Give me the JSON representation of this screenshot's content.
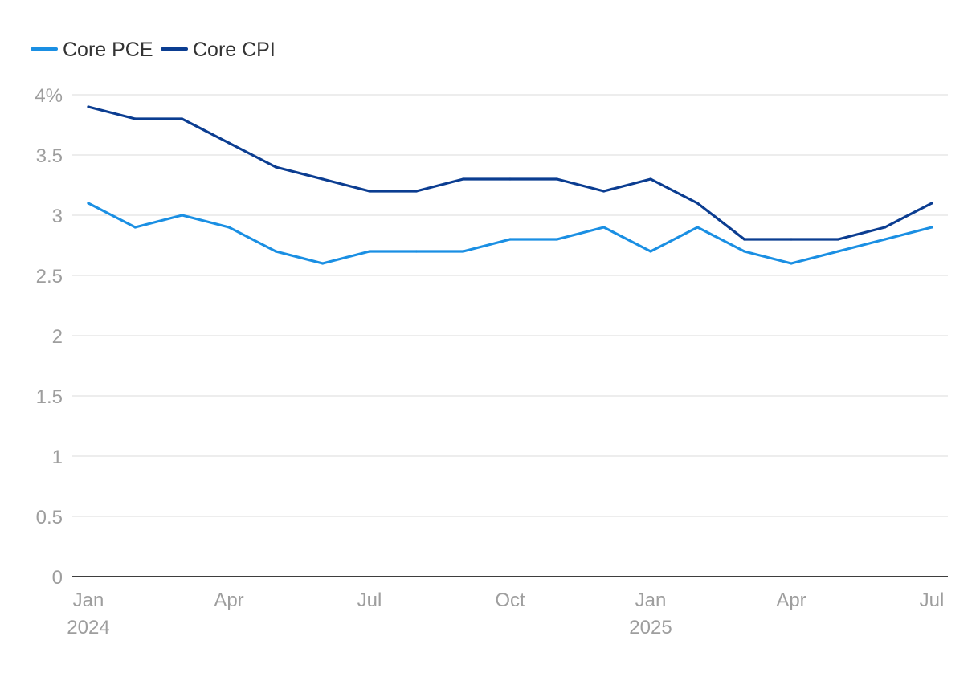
{
  "chart_data": {
    "type": "line",
    "title": "",
    "xlabel": "",
    "ylabel": "",
    "legend_position": "top-left",
    "grid": true,
    "ylim": [
      0,
      4
    ],
    "y_ticks": [
      {
        "value": 4,
        "label": "4%"
      },
      {
        "value": 3.5,
        "label": "3.5"
      },
      {
        "value": 3,
        "label": "3"
      },
      {
        "value": 2.5,
        "label": "2.5"
      },
      {
        "value": 2,
        "label": "2"
      },
      {
        "value": 1.5,
        "label": "1.5"
      },
      {
        "value": 1,
        "label": "1"
      },
      {
        "value": 0.5,
        "label": "0.5"
      },
      {
        "value": 0,
        "label": "0"
      }
    ],
    "x": [
      "2024-01",
      "2024-02",
      "2024-03",
      "2024-04",
      "2024-05",
      "2024-06",
      "2024-07",
      "2024-08",
      "2024-09",
      "2024-10",
      "2024-11",
      "2024-12",
      "2025-01",
      "2025-02",
      "2025-03",
      "2025-04",
      "2025-05",
      "2025-06",
      "2025-07"
    ],
    "x_ticks": [
      {
        "x": "2024-01",
        "label": "Jan",
        "sublabel": "2024"
      },
      {
        "x": "2024-04",
        "label": "Apr",
        "sublabel": ""
      },
      {
        "x": "2024-07",
        "label": "Jul",
        "sublabel": ""
      },
      {
        "x": "2024-10",
        "label": "Oct",
        "sublabel": ""
      },
      {
        "x": "2025-01",
        "label": "Jan",
        "sublabel": "2025"
      },
      {
        "x": "2025-04",
        "label": "Apr",
        "sublabel": ""
      },
      {
        "x": "2025-07",
        "label": "Jul",
        "sublabel": ""
      }
    ],
    "series": [
      {
        "name": "Core PCE",
        "color": "#1a8fe3",
        "values": [
          3.1,
          2.9,
          3.0,
          2.9,
          2.7,
          2.6,
          2.7,
          2.7,
          2.7,
          2.8,
          2.8,
          2.9,
          2.7,
          2.9,
          2.7,
          2.6,
          2.7,
          2.8,
          2.9
        ]
      },
      {
        "name": "Core CPI",
        "color": "#0b3d91",
        "values": [
          3.9,
          3.8,
          3.8,
          3.6,
          3.4,
          3.3,
          3.2,
          3.2,
          3.3,
          3.3,
          3.3,
          3.2,
          3.3,
          3.1,
          2.8,
          2.8,
          2.8,
          2.9,
          3.1
        ]
      }
    ]
  }
}
